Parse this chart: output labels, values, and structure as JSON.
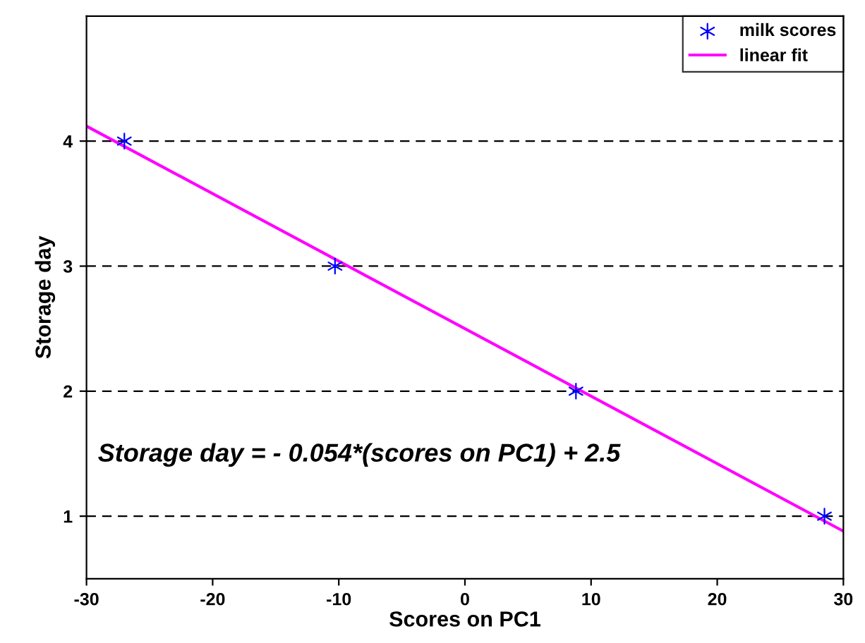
{
  "chart_data": {
    "type": "scatter",
    "xlabel": "Scores on PC1",
    "ylabel": "Storage day",
    "xlim": [
      -30,
      30
    ],
    "xticks": [
      -30,
      -20,
      -10,
      0,
      10,
      20,
      30
    ],
    "ylim": [
      0.5,
      5
    ],
    "yticks": [
      1,
      2,
      3,
      4
    ],
    "grid": "y",
    "legend": "top right",
    "annotations": [
      "Storage day = - 0.054*(scores on PC1) + 2.5"
    ],
    "series": [
      {
        "name": "milk scores",
        "color": "#0000ff",
        "marker": "cross",
        "x": [
          -27,
          -10.3,
          8.8,
          28.5
        ],
        "values": [
          4,
          3,
          2,
          1
        ]
      },
      {
        "name": "linear fit",
        "type": "line",
        "color": "#ff00ff",
        "line_style": "solid",
        "marker": "none",
        "x": [
          -30,
          30
        ],
        "values": [
          4.12,
          0.88
        ]
      }
    ]
  }
}
